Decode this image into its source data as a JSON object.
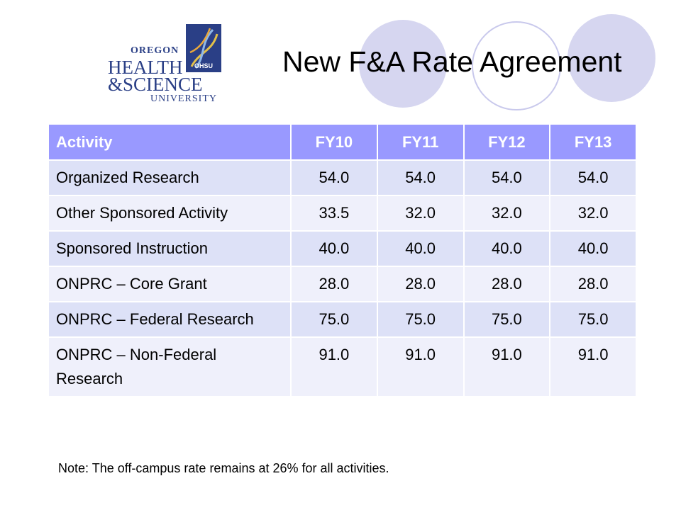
{
  "slide": {
    "title": "New F&A Rate Agreement",
    "note": "Note: The off-campus rate remains at 26% for all activities."
  },
  "logo": {
    "line1": "OREGON",
    "line2": "HEALTH",
    "line3": "&SCIENCE",
    "line4": "UNIVERSITY",
    "badge": "OHSU"
  },
  "table": {
    "headers": [
      "Activity",
      "FY10",
      "FY11",
      "FY12",
      "FY13"
    ],
    "rows": [
      [
        "Organized Research",
        "54.0",
        "54.0",
        "54.0",
        "54.0"
      ],
      [
        "Other Sponsored Activity",
        "33.5",
        "32.0",
        "32.0",
        "32.0"
      ],
      [
        "Sponsored Instruction",
        "40.0",
        "40.0",
        "40.0",
        "40.0"
      ],
      [
        "ONPRC – Core Grant",
        "28.0",
        "28.0",
        "28.0",
        "28.0"
      ],
      [
        "ONPRC – Federal Research",
        "75.0",
        "75.0",
        "75.0",
        "75.0"
      ],
      [
        "ONPRC – Non-Federal Research",
        "91.0",
        "91.0",
        "91.0",
        "91.0"
      ]
    ]
  },
  "colors": {
    "header_bg": "#9999ff",
    "row_odd": "#dde1f7",
    "row_even": "#eff0fb",
    "logo_blue": "#2a3f86",
    "circle_fill": "#d6d6f0"
  }
}
